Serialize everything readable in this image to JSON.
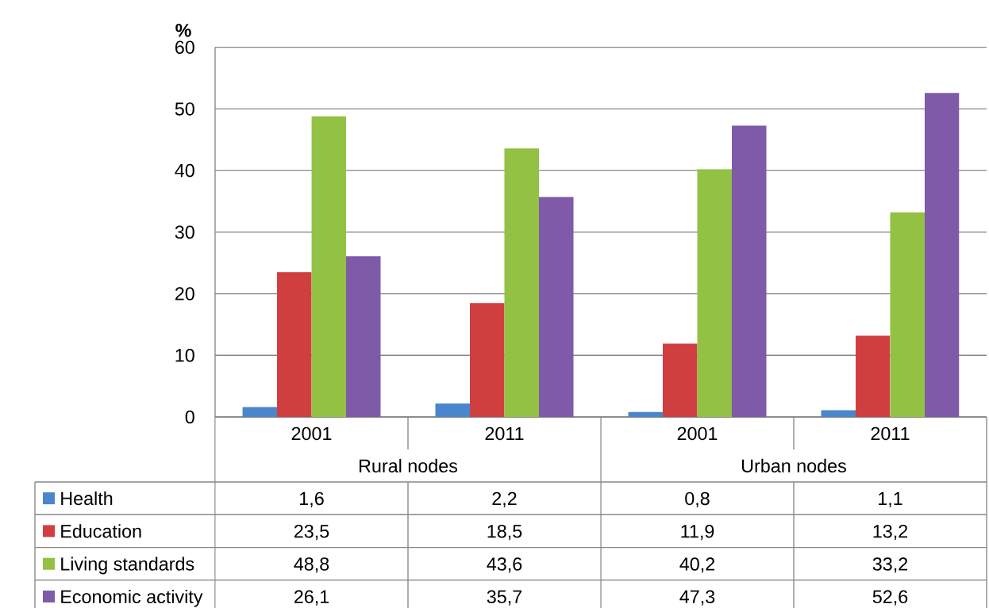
{
  "chart_data": {
    "type": "bar",
    "ylabel": "%",
    "categories": [
      "2001",
      "2011",
      "2001",
      "2011"
    ],
    "annotations": [
      "Rural nodes",
      "Urban nodes"
    ],
    "series": [
      {
        "name": "Health",
        "color": "#4a86cc",
        "values": [
          1.6,
          2.2,
          0.8,
          1.1
        ],
        "value_labels": [
          "1,6",
          "2,2",
          "0,8",
          "1,1"
        ]
      },
      {
        "name": "Education",
        "color": "#d03f3f",
        "values": [
          23.5,
          18.5,
          11.9,
          13.2
        ],
        "value_labels": [
          "23,5",
          "18,5",
          "11,9",
          "13,2"
        ]
      },
      {
        "name": "Living standards",
        "color": "#92c143",
        "values": [
          48.8,
          43.6,
          40.2,
          33.2
        ],
        "value_labels": [
          "48,8",
          "43,6",
          "40,2",
          "33,2"
        ]
      },
      {
        "name": "Economic activity",
        "color": "#7f5aa9",
        "values": [
          26.1,
          35.7,
          47.3,
          52.6
        ],
        "value_labels": [
          "26,1",
          "35,7",
          "47,3",
          "52,6"
        ]
      }
    ],
    "ylim": [
      0,
      60
    ],
    "yticks": [
      0,
      10,
      20,
      30,
      40,
      50,
      60
    ],
    "grid": "y",
    "legend": "bottom"
  }
}
